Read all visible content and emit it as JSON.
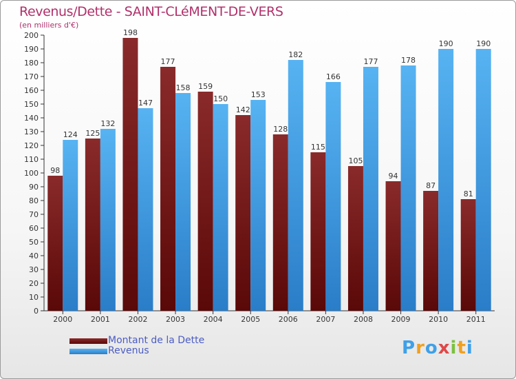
{
  "title": "Revenus/Dette - SAINT-CLéMENT-DE-VERS",
  "subtitle": "(en milliers d'€)",
  "logo_text": "Proxiti",
  "colors": {
    "title": "#b0306a",
    "dette": "#7a1a1a",
    "revenus": "#3fa0e8",
    "legend_text": "#4b5cc4"
  },
  "chart_data": {
    "type": "bar",
    "title": "Revenus/Dette - SAINT-CLéMENT-DE-VERS",
    "ylabel": "(en milliers d'€)",
    "xlabel": "",
    "categories": [
      "2000",
      "2001",
      "2002",
      "2003",
      "2004",
      "2005",
      "2006",
      "2007",
      "2008",
      "2009",
      "2010",
      "2011"
    ],
    "ylim": [
      0,
      200
    ],
    "ytick_step": 10,
    "grid": false,
    "legend_position": "bottom-left",
    "series": [
      {
        "name": "Montant de la Dette",
        "color": "#7a1a1a",
        "values": [
          98,
          125,
          198,
          177,
          159,
          142,
          128,
          115,
          105,
          94,
          87,
          81
        ]
      },
      {
        "name": "Revenus",
        "color": "#3fa0e8",
        "values": [
          124,
          132,
          147,
          158,
          150,
          153,
          182,
          166,
          177,
          178,
          190,
          190
        ]
      }
    ]
  }
}
